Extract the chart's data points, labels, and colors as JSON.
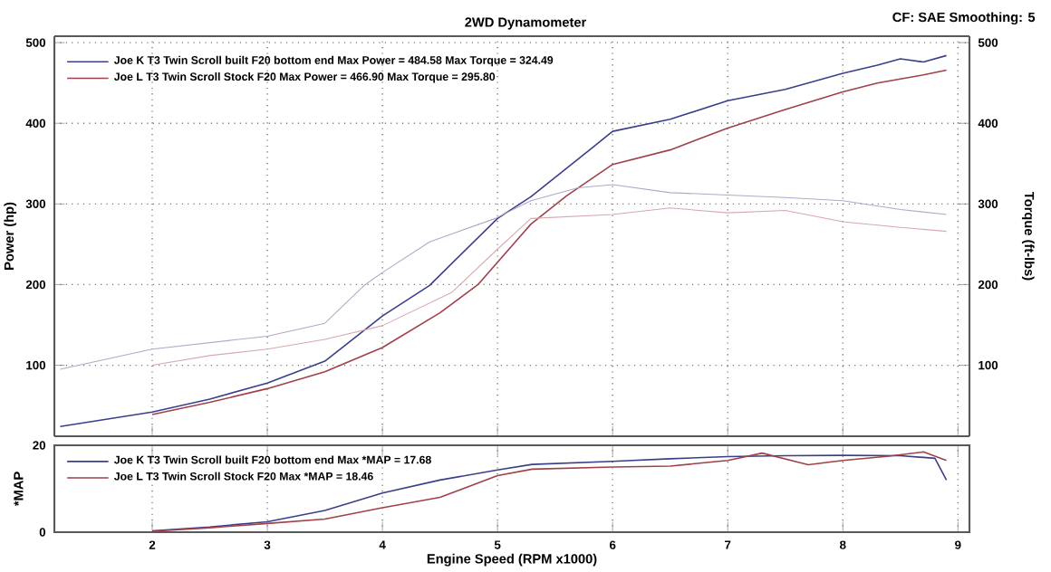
{
  "chart_data": [
    {
      "type": "line",
      "title": "2WD Dynamometer",
      "ylabel": "Power (hp)",
      "y2label": "Torque (ft-lbs)",
      "annotations": [
        "CF: SAE  Smoothing: 5"
      ],
      "xlim": [
        1.15,
        9.1
      ],
      "ylim": [
        12,
        508
      ],
      "yticks": [
        100,
        200,
        300,
        400,
        500
      ],
      "y2lim": [
        12,
        508
      ],
      "y2ticks": [
        100,
        200,
        300,
        400,
        500
      ],
      "xticks": [
        2,
        3,
        4,
        5,
        6,
        7,
        8,
        9
      ],
      "tick_labels": "y",
      "grid": true,
      "legend": "top left",
      "marker": "none",
      "line_style": "solid",
      "series": [
        {
          "name": "Joe K T3 Twin Scroll built F20 bottom end Max Power = 484.58    Max Torque = 324.49",
          "color": "#3a3f8c",
          "x": [
            1.2,
            2,
            2.5,
            3,
            3.5,
            4,
            4.41,
            5,
            5.29,
            5.8,
            6,
            6.5,
            7,
            7.5,
            8,
            8.3,
            8.5,
            8.7,
            8.9
          ],
          "values": [
            24,
            42,
            58,
            78,
            105,
            161,
            199,
            282,
            309,
            367,
            390,
            405,
            428,
            442,
            462,
            472,
            480,
            476,
            484
          ]
        },
        {
          "name": "Joe L T3 Twin Scroll Stock F20 Max Power = 466.90    Max Torque = 295.80",
          "color": "#a0404a",
          "x": [
            2,
            2.5,
            3,
            3.5,
            4,
            4.5,
            4.83,
            5.29,
            5.6,
            6,
            6.5,
            7,
            7.5,
            8,
            8.3,
            8.5,
            8.7,
            8.9
          ],
          "values": [
            39,
            54,
            71,
            92,
            122,
            165,
            200,
            275,
            310,
            349,
            367,
            394,
            417,
            439,
            450,
            455,
            460,
            466
          ]
        },
        {
          "color": "#b0a8c8",
          "axis": "y2",
          "x": [
            1.2,
            2,
            2.5,
            3,
            3.5,
            3.85,
            4,
            4.41,
            4.98,
            5.29,
            5.7,
            6,
            6.5,
            7,
            7.5,
            8,
            8.5,
            8.9
          ],
          "values": [
            95,
            120,
            128,
            136,
            152,
            200,
            215,
            253,
            282,
            304,
            320,
            324,
            314,
            311,
            308,
            304,
            293,
            287
          ]
        },
        {
          "color": "#d8a8b0",
          "axis": "y2",
          "x": [
            2,
            2.5,
            3,
            3.5,
            4,
            4.6,
            5,
            5.29,
            6,
            6.5,
            7,
            7.5,
            8,
            8.5,
            8.9
          ],
          "values": [
            100,
            112,
            120,
            132,
            149,
            190,
            244,
            282,
            287,
            295,
            289,
            292,
            278,
            271,
            266
          ]
        }
      ]
    },
    {
      "type": "line",
      "ylabel": "*MAP",
      "xlabel": "Engine Speed (RPM x1000)",
      "xlim": [
        1.15,
        9.1
      ],
      "ylim": [
        0,
        20
      ],
      "yticks": [
        0,
        20
      ],
      "xticks": [
        2,
        3,
        4,
        5,
        6,
        7,
        8,
        9
      ],
      "grid": "x",
      "legend": "top left",
      "marker": "none",
      "line_style": "solid",
      "series": [
        {
          "name": "Joe K T3 Twin Scroll built F20 bottom end Max *MAP = 17.68",
          "color": "#3a3f8c",
          "x": [
            2,
            2.5,
            3,
            3.5,
            4,
            4.5,
            5,
            5.3,
            6,
            6.5,
            7,
            7.5,
            8,
            8.5,
            8.8,
            8.9
          ],
          "values": [
            0.3,
            1.2,
            2.4,
            5,
            9,
            12,
            14.3,
            15.6,
            16.3,
            16.9,
            17.4,
            17.6,
            17.68,
            17.6,
            17,
            12
          ]
        },
        {
          "name": "Joe L T3 Twin Scroll Stock F20 Max *MAP = 18.46",
          "color": "#a0404a",
          "x": [
            2,
            2.5,
            3,
            3.5,
            4,
            4.5,
            5,
            5.3,
            6,
            6.5,
            7,
            7.3,
            7.7,
            8,
            8.4,
            8.7,
            8.9
          ],
          "values": [
            0.2,
            1,
            2,
            3,
            5.6,
            8,
            13,
            14.5,
            15,
            15.2,
            16.5,
            18.2,
            15.5,
            16.5,
            17.5,
            18.46,
            16.5
          ]
        }
      ]
    }
  ]
}
